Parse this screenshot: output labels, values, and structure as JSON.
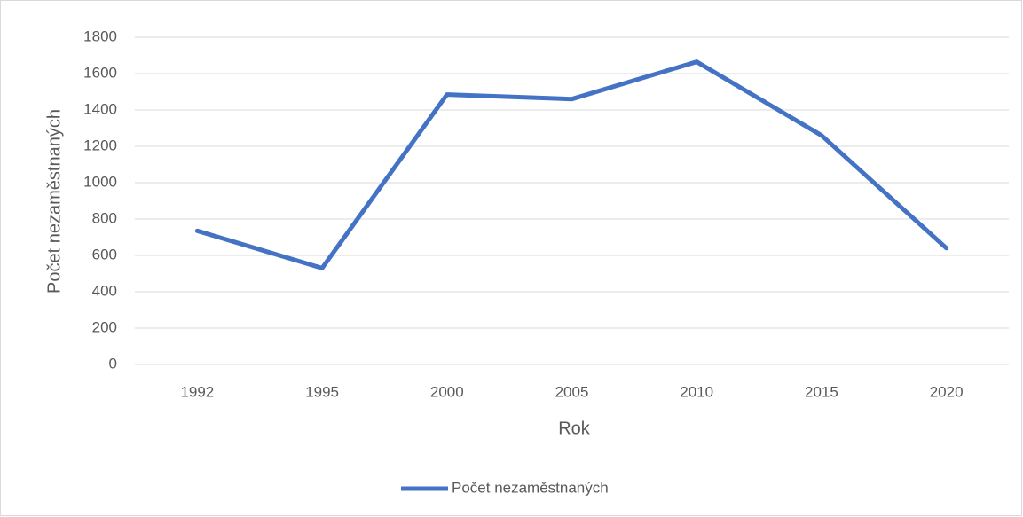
{
  "chart_data": {
    "type": "line",
    "x_label": "Rok",
    "y_label": "Počet nezaměstnaných",
    "categories": [
      "1992",
      "1995",
      "2000",
      "2005",
      "2010",
      "2015",
      "2020"
    ],
    "series": [
      {
        "name": "Počet nezaměstnaných",
        "color": "#4472c4",
        "values": [
          735,
          530,
          1485,
          1460,
          1665,
          1260,
          640
        ]
      }
    ],
    "ylim": [
      0,
      1800
    ],
    "yticks": [
      0,
      200,
      400,
      600,
      800,
      1000,
      1200,
      1400,
      1600,
      1800
    ],
    "grid": true,
    "legend": "bottom"
  }
}
